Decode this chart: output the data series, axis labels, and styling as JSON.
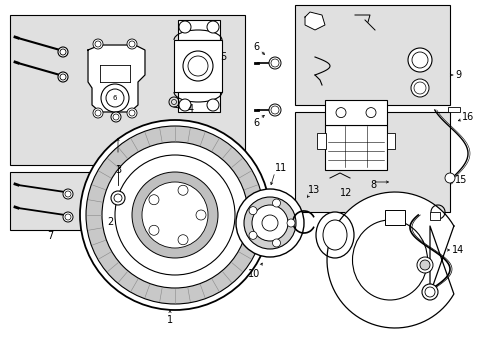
{
  "bg_color": "#ffffff",
  "box_bg": "#e0e0e0",
  "lc": "#000000",
  "fs": 7,
  "figsize": [
    4.89,
    3.6
  ],
  "dpi": 100
}
